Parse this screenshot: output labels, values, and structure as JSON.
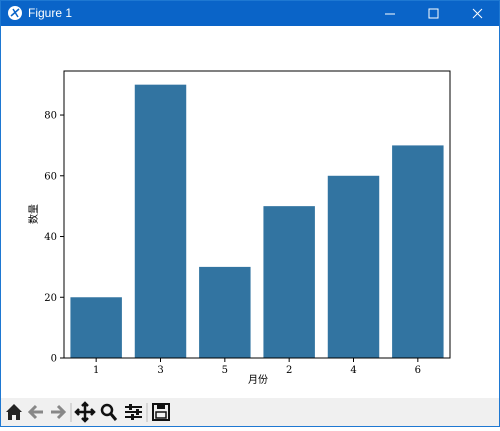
{
  "window": {
    "title": "Figure 1"
  },
  "chart_data": {
    "type": "bar",
    "x_label": "月份",
    "y_label": "数量",
    "categories": [
      "1",
      "3",
      "5",
      "2",
      "4",
      "6"
    ],
    "values": [
      20,
      90,
      30,
      50,
      60,
      70
    ],
    "color": "#3274a1",
    "ylim": [
      0,
      94.5
    ],
    "yticks": [
      0,
      20,
      40,
      60,
      80
    ],
    "grid": false
  }
}
